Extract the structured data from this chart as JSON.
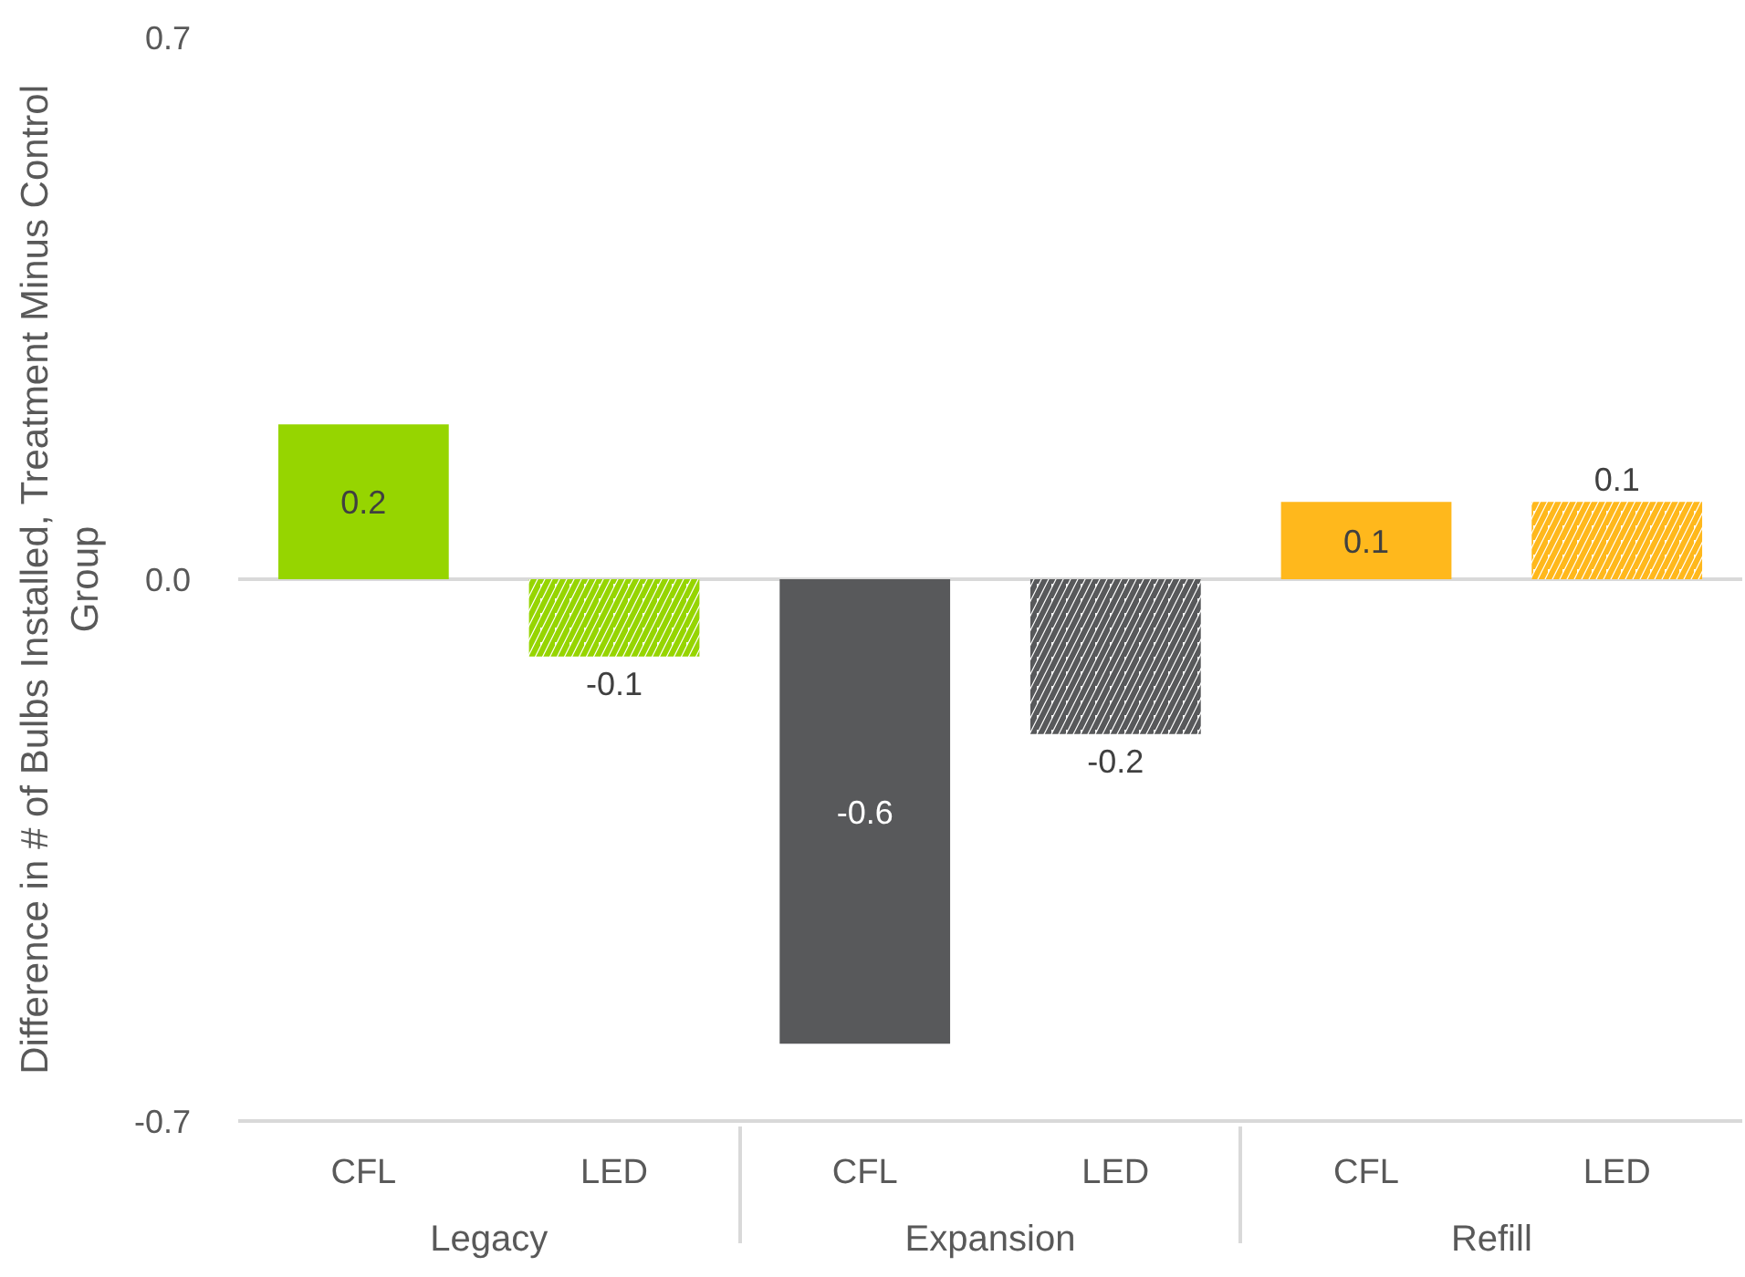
{
  "chart_data": {
    "type": "bar",
    "ylabel": "Difference in # of Bulbs Installed, Treatment Minus Control Group",
    "categories": [
      "Legacy",
      "Expansion",
      "Refill"
    ],
    "series": [
      {
        "name": "CFL",
        "colors": [
          "#96d500",
          "#58595b",
          "#ffb81c"
        ],
        "values": [
          0.2,
          -0.6,
          0.1
        ]
      },
      {
        "name": "LED",
        "colors": [
          "#96d500",
          "#58595b",
          "#ffb81c"
        ],
        "values": [
          -0.1,
          -0.2,
          0.1
        ]
      }
    ],
    "ylim": [
      -0.7,
      0.7
    ],
    "yticks": [
      0.7,
      {
        "value": 0,
        "label": "0.0"
      },
      -0.7
    ],
    "grid": "y",
    "data_labels": true
  }
}
